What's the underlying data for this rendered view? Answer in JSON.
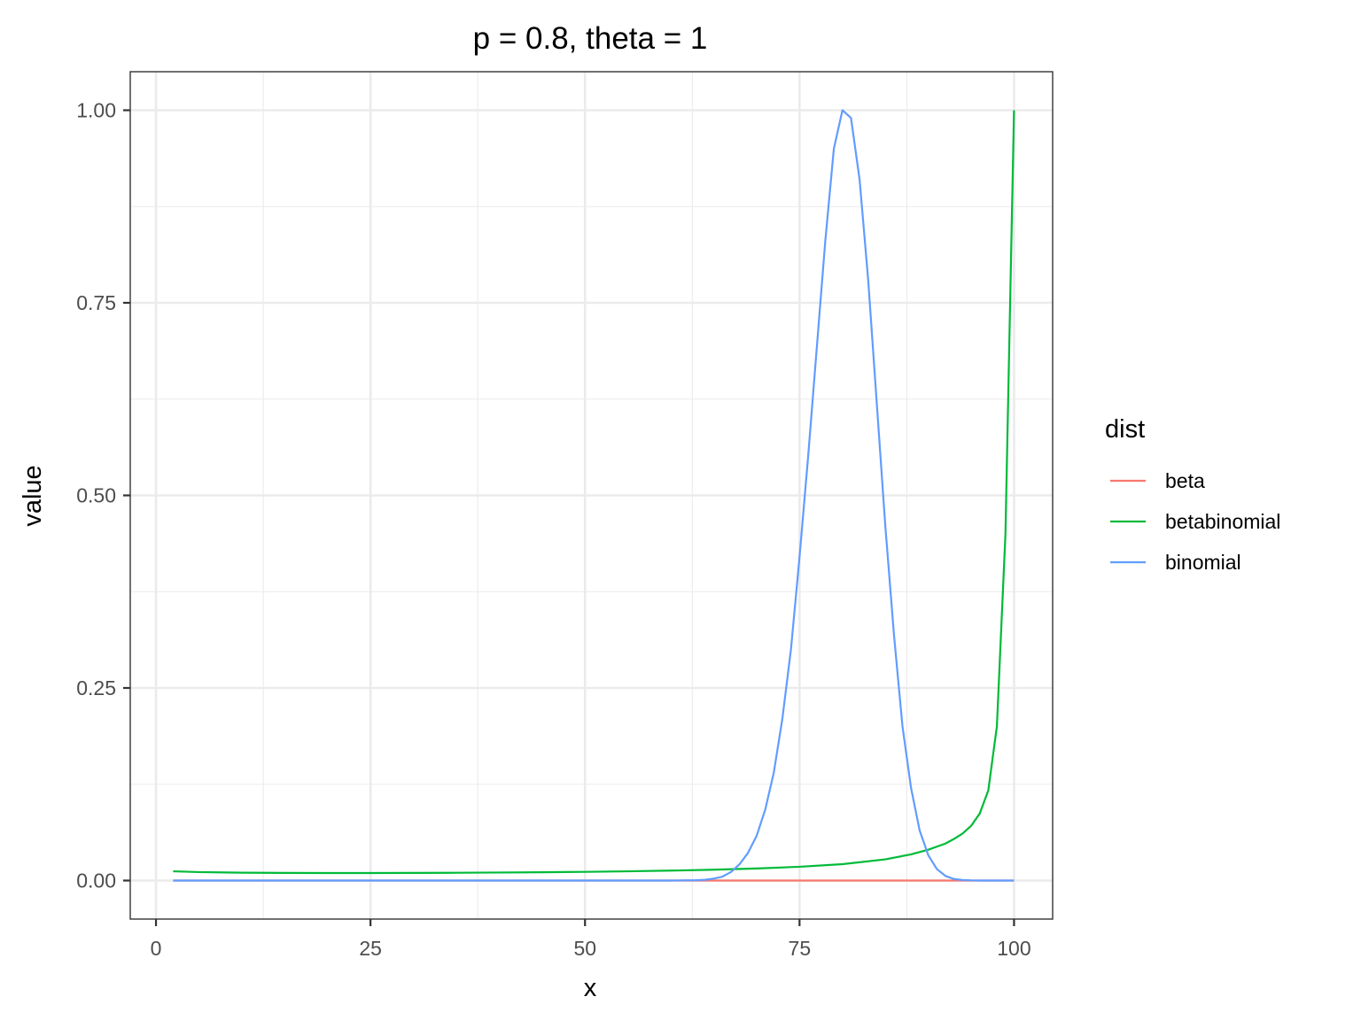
{
  "chart_data": {
    "type": "line",
    "title": "p = 0.8, theta = 1",
    "xlabel": "x",
    "ylabel": "value",
    "xlim": [
      -3,
      104.5
    ],
    "ylim": [
      -0.05,
      1.05
    ],
    "x_ticks": [
      0,
      25,
      50,
      75,
      100
    ],
    "x_tick_labels": [
      "0",
      "25",
      "50",
      "75",
      "100"
    ],
    "y_ticks": [
      0,
      0.25,
      0.5,
      0.75,
      1.0
    ],
    "y_tick_labels": [
      "0.00",
      "0.25",
      "0.50",
      "0.75",
      "1.00"
    ],
    "grid": true,
    "legend": {
      "title": "dist",
      "position": "right"
    },
    "series": [
      {
        "name": "beta",
        "color": "#F8766D",
        "x": [
          2,
          25,
          50,
          65,
          75,
          80,
          85,
          90,
          95,
          100
        ],
        "y": [
          0,
          0,
          0,
          0,
          0,
          0,
          0,
          0,
          0,
          0
        ]
      },
      {
        "name": "betabinomial",
        "color": "#00BA38",
        "x": [
          2,
          5,
          10,
          15,
          20,
          25,
          30,
          35,
          40,
          45,
          50,
          55,
          60,
          65,
          70,
          75,
          80,
          85,
          88,
          90,
          92,
          93,
          94,
          95,
          96,
          97,
          98,
          99,
          100
        ],
        "y": [
          0.012,
          0.011,
          0.0102,
          0.0099,
          0.0098,
          0.0098,
          0.0099,
          0.0101,
          0.0104,
          0.0108,
          0.0113,
          0.012,
          0.0129,
          0.0141,
          0.0157,
          0.0179,
          0.0213,
          0.0275,
          0.034,
          0.04,
          0.048,
          0.054,
          0.061,
          0.071,
          0.087,
          0.117,
          0.2,
          0.45,
          1.0
        ]
      },
      {
        "name": "binomial",
        "color": "#619CFF",
        "x": [
          2,
          20,
          40,
          60,
          63,
          64,
          65,
          66,
          67,
          68,
          69,
          70,
          71,
          72,
          73,
          74,
          75,
          76,
          77,
          78,
          79,
          80,
          81,
          82,
          83,
          84,
          85,
          86,
          87,
          88,
          89,
          90,
          91,
          92,
          93,
          94,
          95,
          96,
          100
        ],
        "y": [
          0,
          0,
          0,
          0,
          0.0004,
          0.001,
          0.0025,
          0.005,
          0.011,
          0.021,
          0.036,
          0.058,
          0.092,
          0.14,
          0.21,
          0.3,
          0.42,
          0.55,
          0.69,
          0.83,
          0.95,
          1.0,
          0.99,
          0.91,
          0.78,
          0.62,
          0.46,
          0.32,
          0.2,
          0.12,
          0.065,
          0.033,
          0.015,
          0.006,
          0.002,
          0.0007,
          0.0002,
          0,
          0
        ]
      }
    ]
  }
}
